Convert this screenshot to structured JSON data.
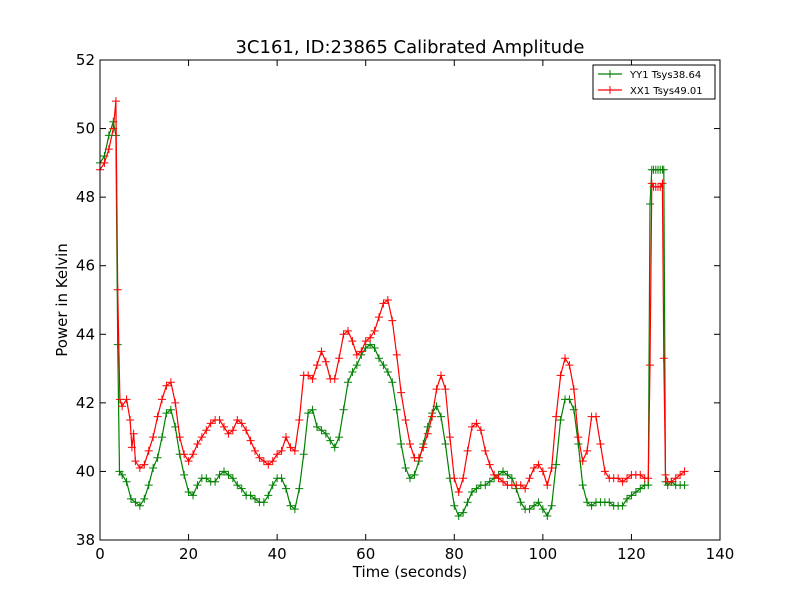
{
  "chart_data": {
    "type": "line",
    "title": "3C161, ID:23865 Calibrated Amplitude",
    "xlabel": "Time (seconds)",
    "ylabel": "Power in Kelvin",
    "xlim": [
      0,
      140
    ],
    "ylim": [
      38,
      52
    ],
    "xticks": [
      0,
      20,
      40,
      60,
      80,
      100,
      120,
      140
    ],
    "yticks": [
      38,
      40,
      42,
      44,
      46,
      48,
      50,
      52
    ],
    "grid": false,
    "legend_position": "top-right",
    "marker": "+",
    "series": [
      {
        "name": "YY1 Tsys38.64",
        "color": "#008000",
        "points": [
          [
            0,
            49.0
          ],
          [
            1,
            49.2
          ],
          [
            2,
            49.8
          ],
          [
            3,
            50.2
          ],
          [
            3.6,
            49.8
          ],
          [
            4,
            43.7
          ],
          [
            4.4,
            40.0
          ],
          [
            5,
            39.9
          ],
          [
            6,
            39.7
          ],
          [
            7,
            39.2
          ],
          [
            8,
            39.1
          ],
          [
            9,
            39.0
          ],
          [
            10,
            39.2
          ],
          [
            11,
            39.6
          ],
          [
            12,
            40.1
          ],
          [
            13,
            40.4
          ],
          [
            14,
            41.0
          ],
          [
            15,
            41.7
          ],
          [
            16,
            41.8
          ],
          [
            17,
            41.3
          ],
          [
            18,
            40.5
          ],
          [
            19,
            39.9
          ],
          [
            20,
            39.4
          ],
          [
            21,
            39.3
          ],
          [
            22,
            39.6
          ],
          [
            23,
            39.8
          ],
          [
            24,
            39.8
          ],
          [
            25,
            39.7
          ],
          [
            26,
            39.7
          ],
          [
            27,
            39.9
          ],
          [
            28,
            40.0
          ],
          [
            29,
            39.9
          ],
          [
            30,
            39.8
          ],
          [
            31,
            39.6
          ],
          [
            32,
            39.5
          ],
          [
            33,
            39.3
          ],
          [
            34,
            39.3
          ],
          [
            35,
            39.2
          ],
          [
            36,
            39.1
          ],
          [
            37,
            39.1
          ],
          [
            38,
            39.3
          ],
          [
            39,
            39.6
          ],
          [
            40,
            39.8
          ],
          [
            41,
            39.8
          ],
          [
            42,
            39.5
          ],
          [
            43,
            39.0
          ],
          [
            44,
            38.9
          ],
          [
            45,
            39.5
          ],
          [
            46,
            40.5
          ],
          [
            47,
            41.7
          ],
          [
            48,
            41.8
          ],
          [
            49,
            41.3
          ],
          [
            50,
            41.2
          ],
          [
            51,
            41.1
          ],
          [
            52,
            40.9
          ],
          [
            53,
            40.7
          ],
          [
            54,
            41.0
          ],
          [
            55,
            41.8
          ],
          [
            56,
            42.6
          ],
          [
            57,
            42.9
          ],
          [
            58,
            43.1
          ],
          [
            59,
            43.4
          ],
          [
            60,
            43.6
          ],
          [
            61,
            43.7
          ],
          [
            62,
            43.6
          ],
          [
            63,
            43.3
          ],
          [
            64,
            43.1
          ],
          [
            65,
            42.9
          ],
          [
            66,
            42.6
          ],
          [
            67,
            41.8
          ],
          [
            68,
            40.8
          ],
          [
            69,
            40.1
          ],
          [
            70,
            39.8
          ],
          [
            71,
            39.9
          ],
          [
            72,
            40.3
          ],
          [
            73,
            40.8
          ],
          [
            74,
            41.3
          ],
          [
            75,
            41.7
          ],
          [
            76,
            41.9
          ],
          [
            77,
            41.6
          ],
          [
            78,
            40.8
          ],
          [
            79,
            39.8
          ],
          [
            80,
            39.0
          ],
          [
            81,
            38.7
          ],
          [
            82,
            38.8
          ],
          [
            83,
            39.1
          ],
          [
            84,
            39.4
          ],
          [
            85,
            39.5
          ],
          [
            86,
            39.6
          ],
          [
            87,
            39.6
          ],
          [
            88,
            39.7
          ],
          [
            89,
            39.8
          ],
          [
            90,
            39.9
          ],
          [
            91,
            40.0
          ],
          [
            92,
            39.9
          ],
          [
            93,
            39.8
          ],
          [
            94,
            39.5
          ],
          [
            95,
            39.1
          ],
          [
            96,
            38.9
          ],
          [
            97,
            38.9
          ],
          [
            98,
            39.0
          ],
          [
            99,
            39.1
          ],
          [
            100,
            38.9
          ],
          [
            101,
            38.7
          ],
          [
            102,
            39.0
          ],
          [
            103,
            40.2
          ],
          [
            104,
            41.5
          ],
          [
            105,
            42.1
          ],
          [
            106,
            42.1
          ],
          [
            107,
            41.8
          ],
          [
            108,
            40.8
          ],
          [
            109,
            39.6
          ],
          [
            110,
            39.1
          ],
          [
            111,
            39.0
          ],
          [
            112,
            39.1
          ],
          [
            113,
            39.1
          ],
          [
            114,
            39.1
          ],
          [
            115,
            39.1
          ],
          [
            116,
            39.0
          ],
          [
            117,
            39.0
          ],
          [
            118,
            39.0
          ],
          [
            119,
            39.2
          ],
          [
            120,
            39.3
          ],
          [
            121,
            39.4
          ],
          [
            122,
            39.5
          ],
          [
            123,
            39.6
          ],
          [
            123.8,
            39.6
          ],
          [
            124.2,
            47.8
          ],
          [
            124.6,
            48.8
          ],
          [
            125,
            48.8
          ],
          [
            125.5,
            48.8
          ],
          [
            126,
            48.8
          ],
          [
            126.5,
            48.8
          ],
          [
            127,
            48.8
          ],
          [
            127.3,
            48.8
          ],
          [
            127.7,
            39.7
          ],
          [
            128.2,
            39.6
          ],
          [
            129,
            39.7
          ],
          [
            130,
            39.6
          ],
          [
            131,
            39.6
          ],
          [
            132,
            39.6
          ]
        ]
      },
      {
        "name": "XX1 Tsys49.01",
        "color": "#ff0000",
        "points": [
          [
            0,
            48.8
          ],
          [
            1,
            49.0
          ],
          [
            2,
            49.4
          ],
          [
            3,
            50.0
          ],
          [
            3.6,
            50.8
          ],
          [
            4,
            45.3
          ],
          [
            4.5,
            42.1
          ],
          [
            5,
            41.9
          ],
          [
            6,
            42.1
          ],
          [
            6.8,
            41.5
          ],
          [
            7.2,
            40.7
          ],
          [
            7.6,
            41.1
          ],
          [
            8,
            40.3
          ],
          [
            9,
            40.1
          ],
          [
            10,
            40.2
          ],
          [
            11,
            40.6
          ],
          [
            12,
            41.0
          ],
          [
            13,
            41.6
          ],
          [
            14,
            42.1
          ],
          [
            15,
            42.5
          ],
          [
            16,
            42.6
          ],
          [
            17,
            42.0
          ],
          [
            18,
            41.0
          ],
          [
            19,
            40.5
          ],
          [
            20,
            40.3
          ],
          [
            21,
            40.5
          ],
          [
            22,
            40.8
          ],
          [
            23,
            41.0
          ],
          [
            24,
            41.2
          ],
          [
            25,
            41.4
          ],
          [
            26,
            41.5
          ],
          [
            27,
            41.5
          ],
          [
            28,
            41.3
          ],
          [
            29,
            41.1
          ],
          [
            30,
            41.2
          ],
          [
            31,
            41.5
          ],
          [
            32,
            41.4
          ],
          [
            33,
            41.2
          ],
          [
            34,
            40.9
          ],
          [
            35,
            40.6
          ],
          [
            36,
            40.4
          ],
          [
            37,
            40.3
          ],
          [
            38,
            40.2
          ],
          [
            39,
            40.3
          ],
          [
            40,
            40.5
          ],
          [
            41,
            40.6
          ],
          [
            42,
            41.0
          ],
          [
            43,
            40.7
          ],
          [
            44,
            40.6
          ],
          [
            45,
            41.5
          ],
          [
            46,
            42.8
          ],
          [
            47,
            42.8
          ],
          [
            48,
            42.7
          ],
          [
            49,
            43.1
          ],
          [
            50,
            43.5
          ],
          [
            51,
            43.2
          ],
          [
            52,
            42.7
          ],
          [
            53,
            42.7
          ],
          [
            54,
            43.3
          ],
          [
            55,
            44.0
          ],
          [
            56,
            44.1
          ],
          [
            57,
            43.8
          ],
          [
            58,
            43.4
          ],
          [
            59,
            43.5
          ],
          [
            60,
            43.8
          ],
          [
            61,
            43.9
          ],
          [
            62,
            44.1
          ],
          [
            63,
            44.5
          ],
          [
            64,
            44.9
          ],
          [
            65,
            45.0
          ],
          [
            66,
            44.4
          ],
          [
            67,
            43.4
          ],
          [
            68,
            42.3
          ],
          [
            69,
            41.5
          ],
          [
            70,
            40.8
          ],
          [
            71,
            40.4
          ],
          [
            72,
            40.4
          ],
          [
            73,
            40.7
          ],
          [
            74,
            41.1
          ],
          [
            75,
            41.6
          ],
          [
            76,
            42.4
          ],
          [
            77,
            42.8
          ],
          [
            78,
            42.4
          ],
          [
            79,
            41.0
          ],
          [
            80,
            39.8
          ],
          [
            81,
            39.4
          ],
          [
            82,
            39.8
          ],
          [
            83,
            40.6
          ],
          [
            84,
            41.3
          ],
          [
            85,
            41.4
          ],
          [
            86,
            41.2
          ],
          [
            87,
            40.6
          ],
          [
            88,
            40.2
          ],
          [
            89,
            39.9
          ],
          [
            90,
            39.8
          ],
          [
            91,
            39.7
          ],
          [
            92,
            39.6
          ],
          [
            93,
            39.6
          ],
          [
            94,
            39.6
          ],
          [
            95,
            39.6
          ],
          [
            96,
            39.5
          ],
          [
            97,
            39.8
          ],
          [
            98,
            40.1
          ],
          [
            99,
            40.2
          ],
          [
            100,
            40.0
          ],
          [
            101,
            39.6
          ],
          [
            102,
            40.1
          ],
          [
            103,
            41.6
          ],
          [
            104,
            42.8
          ],
          [
            105,
            43.3
          ],
          [
            106,
            43.1
          ],
          [
            107,
            42.4
          ],
          [
            108,
            41.0
          ],
          [
            109,
            40.3
          ],
          [
            110,
            40.6
          ],
          [
            111,
            41.6
          ],
          [
            112,
            41.6
          ],
          [
            113,
            40.8
          ],
          [
            114,
            40.0
          ],
          [
            115,
            39.8
          ],
          [
            116,
            39.8
          ],
          [
            117,
            39.8
          ],
          [
            118,
            39.7
          ],
          [
            119,
            39.8
          ],
          [
            120,
            39.9
          ],
          [
            121,
            39.9
          ],
          [
            122,
            39.9
          ],
          [
            123,
            39.8
          ],
          [
            123.8,
            39.8
          ],
          [
            124.2,
            43.1
          ],
          [
            124.6,
            48.4
          ],
          [
            125,
            48.3
          ],
          [
            125.5,
            48.3
          ],
          [
            126,
            48.3
          ],
          [
            126.5,
            48.3
          ],
          [
            127,
            48.4
          ],
          [
            127.3,
            43.3
          ],
          [
            127.7,
            39.9
          ],
          [
            128.2,
            39.7
          ],
          [
            129,
            39.7
          ],
          [
            130,
            39.8
          ],
          [
            131,
            39.9
          ],
          [
            132,
            40.0
          ]
        ]
      }
    ]
  }
}
